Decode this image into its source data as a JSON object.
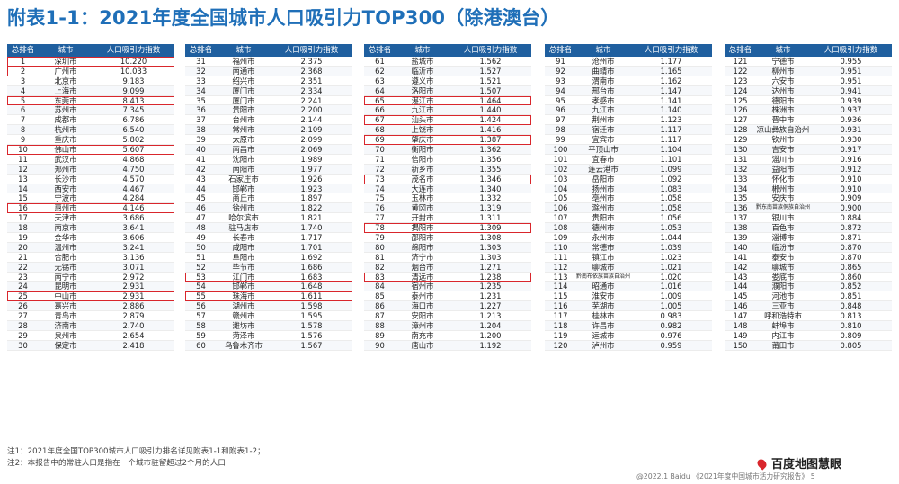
{
  "title": "附表1-1：2021年度全国城市人口吸引力TOP300（除港澳台）",
  "headers": [
    "总排名",
    "城市",
    "人口吸引力指数"
  ],
  "highlight_color": "#d9262c",
  "header_color": "#1f5f9f",
  "title_color": "#1f6fb8",
  "tables": [
    {
      "rows": [
        [
          "1",
          "深圳市",
          "10.220"
        ],
        [
          "2",
          "广州市",
          "10.033"
        ],
        [
          "3",
          "北京市",
          "9.183"
        ],
        [
          "4",
          "上海市",
          "9.099"
        ],
        [
          "5",
          "东莞市",
          "8.413"
        ],
        [
          "6",
          "苏州市",
          "7.345"
        ],
        [
          "7",
          "成都市",
          "6.786"
        ],
        [
          "8",
          "杭州市",
          "6.540"
        ],
        [
          "9",
          "重庆市",
          "5.802"
        ],
        [
          "10",
          "佛山市",
          "5.607"
        ],
        [
          "11",
          "武汉市",
          "4.868"
        ],
        [
          "12",
          "郑州市",
          "4.750"
        ],
        [
          "13",
          "长沙市",
          "4.570"
        ],
        [
          "14",
          "西安市",
          "4.467"
        ],
        [
          "15",
          "宁波市",
          "4.284"
        ],
        [
          "16",
          "惠州市",
          "4.146"
        ],
        [
          "17",
          "天津市",
          "3.686"
        ],
        [
          "18",
          "南京市",
          "3.641"
        ],
        [
          "19",
          "金华市",
          "3.606"
        ],
        [
          "20",
          "温州市",
          "3.241"
        ],
        [
          "21",
          "合肥市",
          "3.136"
        ],
        [
          "22",
          "无锡市",
          "3.071"
        ],
        [
          "23",
          "南宁市",
          "2.972"
        ],
        [
          "24",
          "昆明市",
          "2.931"
        ],
        [
          "25",
          "中山市",
          "2.931"
        ],
        [
          "26",
          "嘉兴市",
          "2.886"
        ],
        [
          "27",
          "青岛市",
          "2.879"
        ],
        [
          "28",
          "济南市",
          "2.740"
        ],
        [
          "29",
          "泉州市",
          "2.654"
        ],
        [
          "30",
          "保定市",
          "2.418"
        ]
      ],
      "highlighted": [
        "1",
        "2",
        "5",
        "10",
        "16",
        "25"
      ]
    },
    {
      "rows": [
        [
          "31",
          "福州市",
          "2.375"
        ],
        [
          "32",
          "南通市",
          "2.368"
        ],
        [
          "33",
          "绍兴市",
          "2.351"
        ],
        [
          "34",
          "厦门市",
          "2.334"
        ],
        [
          "35",
          "厦门市",
          "2.241"
        ],
        [
          "36",
          "贵阳市",
          "2.200"
        ],
        [
          "37",
          "台州市",
          "2.144"
        ],
        [
          "38",
          "常州市",
          "2.109"
        ],
        [
          "39",
          "太原市",
          "2.099"
        ],
        [
          "40",
          "南昌市",
          "2.069"
        ],
        [
          "41",
          "沈阳市",
          "1.989"
        ],
        [
          "42",
          "南阳市",
          "1.977"
        ],
        [
          "43",
          "石家庄市",
          "1.926"
        ],
        [
          "44",
          "邯郸市",
          "1.923"
        ],
        [
          "45",
          "商丘市",
          "1.897"
        ],
        [
          "46",
          "徐州市",
          "1.822"
        ],
        [
          "47",
          "哈尔滨市",
          "1.821"
        ],
        [
          "48",
          "驻马店市",
          "1.740"
        ],
        [
          "49",
          "长春市",
          "1.717"
        ],
        [
          "50",
          "咸阳市",
          "1.701"
        ],
        [
          "51",
          "阜阳市",
          "1.692"
        ],
        [
          "52",
          "毕节市",
          "1.686"
        ],
        [
          "53",
          "江门市",
          "1.683"
        ],
        [
          "54",
          "邯郸市",
          "1.648"
        ],
        [
          "55",
          "珠海市",
          "1.611"
        ],
        [
          "56",
          "湖州市",
          "1.598"
        ],
        [
          "57",
          "赣州市",
          "1.595"
        ],
        [
          "58",
          "潍坊市",
          "1.578"
        ],
        [
          "59",
          "菏泽市",
          "1.576"
        ],
        [
          "60",
          "乌鲁木齐市",
          "1.567"
        ]
      ],
      "highlighted": [
        "53",
        "55"
      ]
    },
    {
      "rows": [
        [
          "61",
          "盐城市",
          "1.562"
        ],
        [
          "62",
          "临沂市",
          "1.527"
        ],
        [
          "63",
          "遵义市",
          "1.521"
        ],
        [
          "64",
          "洛阳市",
          "1.507"
        ],
        [
          "65",
          "湛江市",
          "1.464"
        ],
        [
          "66",
          "九江市",
          "1.440"
        ],
        [
          "67",
          "汕头市",
          "1.424"
        ],
        [
          "68",
          "上饶市",
          "1.416"
        ],
        [
          "69",
          "肇庆市",
          "1.387"
        ],
        [
          "70",
          "衡阳市",
          "1.362"
        ],
        [
          "71",
          "信阳市",
          "1.356"
        ],
        [
          "72",
          "新乡市",
          "1.355"
        ],
        [
          "73",
          "茂名市",
          "1.346"
        ],
        [
          "74",
          "大连市",
          "1.340"
        ],
        [
          "75",
          "玉林市",
          "1.332"
        ],
        [
          "76",
          "黄冈市",
          "1.319"
        ],
        [
          "77",
          "开封市",
          "1.311"
        ],
        [
          "78",
          "揭阳市",
          "1.309"
        ],
        [
          "79",
          "邵阳市",
          "1.308"
        ],
        [
          "80",
          "绵阳市",
          "1.303"
        ],
        [
          "81",
          "济宁市",
          "1.303"
        ],
        [
          "82",
          "烟台市",
          "1.271"
        ],
        [
          "83",
          "清远市",
          "1.238"
        ],
        [
          "84",
          "宿州市",
          "1.235"
        ],
        [
          "85",
          "泰州市",
          "1.231"
        ],
        [
          "86",
          "海口市",
          "1.227"
        ],
        [
          "87",
          "安阳市",
          "1.213"
        ],
        [
          "88",
          "漳州市",
          "1.204"
        ],
        [
          "89",
          "南充市",
          "1.200"
        ],
        [
          "90",
          "唐山市",
          "1.192"
        ]
      ],
      "highlighted": [
        "65",
        "67",
        "69",
        "73",
        "78",
        "83"
      ]
    },
    {
      "rows": [
        [
          "91",
          "沧州市",
          "1.177"
        ],
        [
          "92",
          "曲靖市",
          "1.165"
        ],
        [
          "93",
          "渭南市",
          "1.162"
        ],
        [
          "94",
          "邢台市",
          "1.147"
        ],
        [
          "95",
          "孝感市",
          "1.141"
        ],
        [
          "96",
          "九江市",
          "1.140"
        ],
        [
          "97",
          "荆州市",
          "1.123"
        ],
        [
          "98",
          "宿迁市",
          "1.117"
        ],
        [
          "99",
          "宜宾市",
          "1.117"
        ],
        [
          "100",
          "平顶山市",
          "1.104"
        ],
        [
          "101",
          "宜春市",
          "1.101"
        ],
        [
          "102",
          "连云港市",
          "1.099"
        ],
        [
          "103",
          "岳阳市",
          "1.092"
        ],
        [
          "104",
          "扬州市",
          "1.083"
        ],
        [
          "105",
          "亳州市",
          "1.058"
        ],
        [
          "106",
          "滁州市",
          "1.058"
        ],
        [
          "107",
          "贵阳市",
          "1.056"
        ],
        [
          "108",
          "德州市",
          "1.053"
        ],
        [
          "109",
          "永州市",
          "1.044"
        ],
        [
          "110",
          "常德市",
          "1.039"
        ],
        [
          "111",
          "镇江市",
          "1.023"
        ],
        [
          "112",
          "聊城市",
          "1.021"
        ],
        [
          "113",
          "黔南布依族苗族自治州",
          "1.020"
        ],
        [
          "114",
          "昭通市",
          "1.016"
        ],
        [
          "115",
          "淮安市",
          "1.009"
        ],
        [
          "116",
          "芜湖市",
          "1.005"
        ],
        [
          "117",
          "桂林市",
          "0.983"
        ],
        [
          "118",
          "许昌市",
          "0.982"
        ],
        [
          "119",
          "运城市",
          "0.976"
        ],
        [
          "120",
          "泸州市",
          "0.959"
        ]
      ],
      "highlighted": []
    },
    {
      "rows": [
        [
          "121",
          "宁德市",
          "0.955"
        ],
        [
          "122",
          "柳州市",
          "0.951"
        ],
        [
          "123",
          "六安市",
          "0.951"
        ],
        [
          "124",
          "达州市",
          "0.941"
        ],
        [
          "125",
          "德阳市",
          "0.939"
        ],
        [
          "126",
          "株洲市",
          "0.937"
        ],
        [
          "127",
          "晋中市",
          "0.936"
        ],
        [
          "128",
          "凉山彝族自治州",
          "0.931"
        ],
        [
          "129",
          "钦州市",
          "0.930"
        ],
        [
          "130",
          "吉安市",
          "0.917"
        ],
        [
          "131",
          "淄川市",
          "0.916"
        ],
        [
          "132",
          "益阳市",
          "0.912"
        ],
        [
          "133",
          "怀化市",
          "0.910"
        ],
        [
          "134",
          "郴州市",
          "0.910"
        ],
        [
          "135",
          "安庆市",
          "0.909"
        ],
        [
          "136",
          "黔东南苗族侗族自治州",
          "0.900"
        ],
        [
          "137",
          "银川市",
          "0.884"
        ],
        [
          "138",
          "百色市",
          "0.872"
        ],
        [
          "139",
          "淄博市",
          "0.871"
        ],
        [
          "140",
          "临汾市",
          "0.870"
        ],
        [
          "141",
          "泰安市",
          "0.870"
        ],
        [
          "142",
          "聊城市",
          "0.865"
        ],
        [
          "143",
          "娄底市",
          "0.860"
        ],
        [
          "144",
          "濮阳市",
          "0.852"
        ],
        [
          "145",
          "河池市",
          "0.851"
        ],
        [
          "146",
          "三亚市",
          "0.848"
        ],
        [
          "147",
          "呼和浩特市",
          "0.813"
        ],
        [
          "148",
          "蚌埠市",
          "0.810"
        ],
        [
          "149",
          "内江市",
          "0.809"
        ],
        [
          "150",
          "莆田市",
          "0.805"
        ]
      ],
      "highlighted": []
    }
  ],
  "notes": [
    "注1：2021年度全国TOP300城市人口吸引力排名详见附表1-1和附表1-2；",
    "注2：本报告中的常驻人口是指在一个城市驻留超过2个月的人口"
  ],
  "brand": "百度地图慧眼",
  "brand_icon": "map-pin-icon",
  "footer": "@2022.1 Baidu 《2021年度中国城市活力研究报告》 5"
}
